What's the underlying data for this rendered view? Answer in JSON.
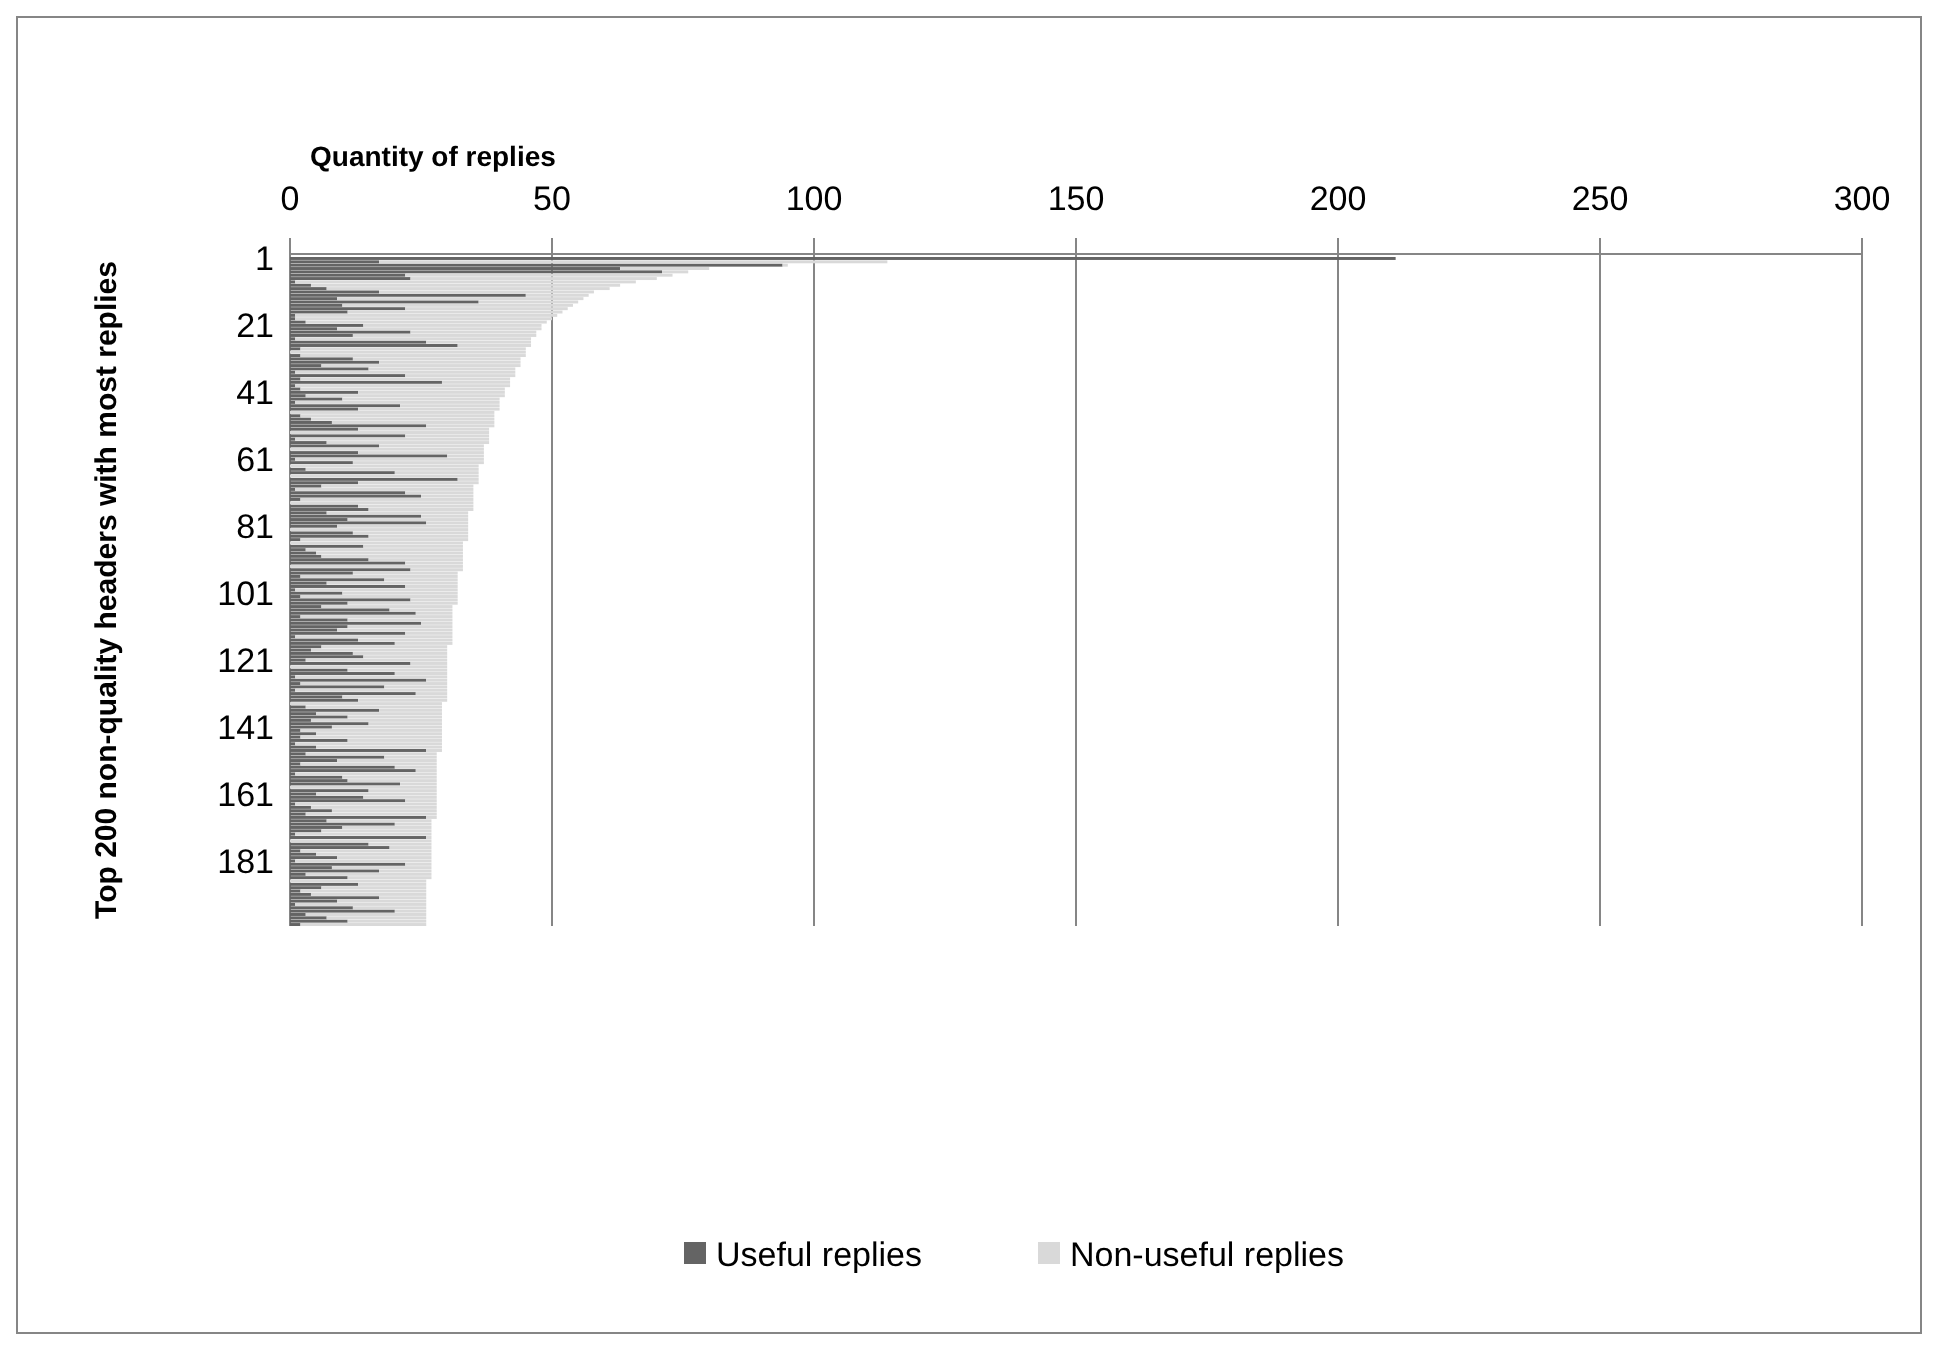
{
  "chart_data": {
    "type": "bar",
    "orientation": "horizontal",
    "stacked": true,
    "xlabel": "Quantity of replies",
    "ylabel": "Top 200 non-quality headers with most replies",
    "categories": [
      "1",
      null,
      null,
      null,
      null,
      null,
      null,
      null,
      null,
      null,
      null,
      null,
      null,
      null,
      null,
      null,
      null,
      null,
      null,
      null,
      "21",
      null,
      null,
      null,
      null,
      null,
      null,
      null,
      null,
      null,
      null,
      null,
      null,
      null,
      null,
      null,
      null,
      null,
      null,
      null,
      "41",
      null,
      null,
      null,
      null,
      null,
      null,
      null,
      null,
      null,
      null,
      null,
      null,
      null,
      null,
      null,
      null,
      null,
      null,
      null,
      "61",
      null,
      null,
      null,
      null,
      null,
      null,
      null,
      null,
      null,
      null,
      null,
      null,
      null,
      null,
      null,
      null,
      null,
      null,
      null,
      "81",
      null,
      null,
      null,
      null,
      null,
      null,
      null,
      null,
      null,
      null,
      null,
      null,
      null,
      null,
      null,
      null,
      null,
      null,
      null,
      "101",
      null,
      null,
      null,
      null,
      null,
      null,
      null,
      null,
      null,
      null,
      null,
      null,
      null,
      null,
      null,
      null,
      null,
      null,
      null,
      "121",
      null,
      null,
      null,
      null,
      null,
      null,
      null,
      null,
      null,
      null,
      null,
      null,
      null,
      null,
      null,
      null,
      null,
      null,
      null,
      "141",
      null,
      null,
      null,
      null,
      null,
      null,
      null,
      null,
      null,
      null,
      null,
      null,
      null,
      null,
      null,
      null,
      null,
      null,
      null,
      "161",
      null,
      null,
      null,
      null,
      null,
      null,
      null,
      null,
      null,
      null,
      null,
      null,
      null,
      null,
      null,
      null,
      null,
      null,
      null,
      "181",
      null,
      null,
      null,
      null,
      null,
      null,
      null,
      null,
      null,
      null,
      null,
      null,
      null,
      null,
      null,
      null,
      null,
      null,
      null
    ],
    "series": [
      {
        "name": "Useful replies",
        "color": "#646464",
        "values": [
          211,
          17,
          94,
          63,
          71,
          22,
          23,
          1,
          4,
          7,
          17,
          45,
          9,
          36,
          10,
          22,
          11,
          1,
          1,
          3,
          14,
          9,
          23,
          12,
          1,
          26,
          32,
          2,
          0,
          2,
          12,
          17,
          6,
          15,
          1,
          22,
          2,
          29,
          1,
          2,
          13,
          3,
          10,
          1,
          21,
          13,
          0,
          2,
          4,
          8,
          26,
          13,
          0,
          22,
          1,
          7,
          17,
          0,
          13,
          30,
          1,
          12,
          0,
          3,
          20,
          0,
          32,
          13,
          6,
          1,
          22,
          25,
          2,
          0,
          13,
          15,
          7,
          25,
          11,
          26,
          9,
          0,
          12,
          15,
          2,
          0,
          14,
          3,
          5,
          6,
          15,
          22,
          0,
          23,
          12,
          2,
          18,
          7,
          22,
          1,
          10,
          2,
          23,
          11,
          6,
          19,
          24,
          2,
          11,
          25,
          11,
          9,
          22,
          1,
          13,
          20,
          6,
          4,
          12,
          14,
          3,
          23,
          0,
          11,
          20,
          1,
          26,
          2,
          18,
          1,
          24,
          10,
          13,
          0,
          3,
          17,
          5,
          11,
          4,
          15,
          8,
          2,
          5,
          2,
          11,
          1,
          5,
          26,
          3,
          18,
          9,
          2,
          20,
          24,
          1,
          10,
          11,
          21,
          0,
          15,
          5,
          14,
          22,
          1,
          4,
          8,
          3,
          26,
          7,
          20,
          10,
          6,
          1,
          26,
          0,
          15,
          19,
          2,
          5,
          9,
          1,
          22,
          8,
          17,
          3,
          11,
          0,
          13,
          6,
          2,
          4,
          17,
          9,
          1,
          12,
          20,
          3,
          7,
          11,
          2
        ]
      },
      {
        "name": "Non-useful replies",
        "color": "#d9d9d9",
        "values": [
          0,
          97,
          1,
          17,
          5,
          51,
          47,
          65,
          59,
          54,
          41,
          12,
          47,
          19,
          44,
          31,
          41,
          50,
          49,
          46,
          34,
          39,
          24,
          35,
          45,
          20,
          14,
          43,
          45,
          43,
          32,
          27,
          38,
          28,
          42,
          21,
          40,
          13,
          41,
          39,
          28,
          38,
          30,
          39,
          19,
          27,
          39,
          37,
          35,
          31,
          13,
          25,
          38,
          16,
          37,
          31,
          20,
          37,
          24,
          7,
          36,
          25,
          36,
          33,
          16,
          36,
          4,
          23,
          29,
          34,
          13,
          10,
          33,
          35,
          22,
          20,
          27,
          9,
          23,
          8,
          25,
          34,
          22,
          19,
          32,
          33,
          19,
          30,
          28,
          27,
          18,
          11,
          33,
          10,
          20,
          30,
          14,
          25,
          10,
          31,
          22,
          30,
          9,
          21,
          25,
          12,
          7,
          29,
          20,
          6,
          20,
          22,
          9,
          30,
          18,
          11,
          24,
          26,
          18,
          16,
          27,
          7,
          30,
          19,
          10,
          29,
          4,
          28,
          12,
          29,
          6,
          20,
          17,
          29,
          26,
          12,
          24,
          18,
          25,
          14,
          21,
          27,
          24,
          27,
          18,
          28,
          24,
          3,
          25,
          10,
          19,
          26,
          8,
          4,
          27,
          18,
          17,
          7,
          28,
          13,
          23,
          14,
          6,
          27,
          24,
          20,
          25,
          2,
          20,
          7,
          17,
          21,
          26,
          1,
          27,
          12,
          8,
          25,
          22,
          18,
          26,
          5,
          19,
          10,
          24,
          16,
          26,
          13,
          20,
          24,
          22,
          9,
          17,
          25,
          14,
          6,
          23,
          19,
          15,
          24
        ]
      }
    ],
    "xlim": [
      0,
      300
    ],
    "xticks": [
      0,
      50,
      100,
      150,
      200,
      250,
      300
    ],
    "grid": "x",
    "legend": "bottom"
  }
}
